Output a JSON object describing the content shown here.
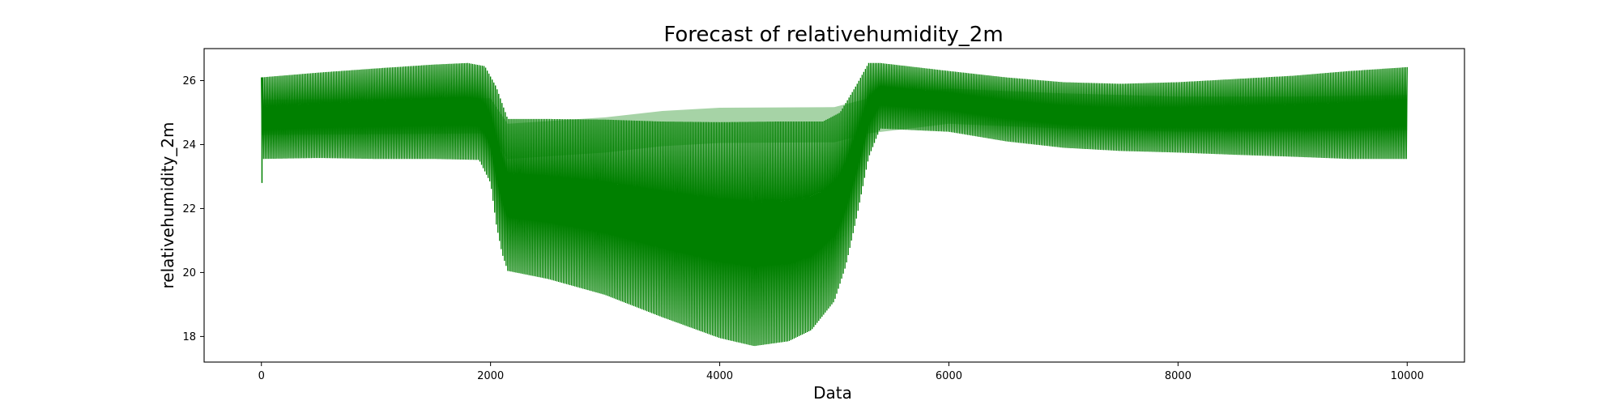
{
  "chart_data": {
    "type": "line",
    "title": "Forecast of relativehumidity_2m",
    "xlabel": "Data",
    "ylabel": "relativehumidity_2m",
    "xlim": [
      -500,
      10500
    ],
    "ylim": [
      17.2,
      27.0
    ],
    "xticks": [
      0,
      2000,
      4000,
      6000,
      8000,
      10000
    ],
    "yticks": [
      18,
      20,
      22,
      24,
      26
    ],
    "grid": false,
    "series": [
      {
        "color": "#008000",
        "x_range": [
          0,
          10000
        ],
        "upper_envelope": [
          [
            0,
            26.1
          ],
          [
            500,
            26.25
          ],
          [
            1000,
            26.38
          ],
          [
            1500,
            26.5
          ],
          [
            1800,
            26.55
          ],
          [
            1950,
            26.45
          ],
          [
            2050,
            25.8
          ],
          [
            2150,
            24.8
          ],
          [
            2500,
            24.8
          ],
          [
            3000,
            24.78
          ],
          [
            3500,
            24.72
          ],
          [
            4000,
            24.7
          ],
          [
            4500,
            24.72
          ],
          [
            4900,
            24.72
          ],
          [
            5050,
            25.0
          ],
          [
            5200,
            25.9
          ],
          [
            5300,
            26.55
          ],
          [
            5400,
            26.55
          ],
          [
            6000,
            26.3
          ],
          [
            6500,
            26.1
          ],
          [
            7000,
            25.95
          ],
          [
            7500,
            25.9
          ],
          [
            8000,
            25.95
          ],
          [
            8500,
            26.05
          ],
          [
            9000,
            26.15
          ],
          [
            9500,
            26.3
          ],
          [
            10000,
            26.42
          ]
        ],
        "lower_envelope": [
          [
            0,
            23.55
          ],
          [
            500,
            23.58
          ],
          [
            1000,
            23.55
          ],
          [
            1500,
            23.55
          ],
          [
            1900,
            23.52
          ],
          [
            2000,
            22.8
          ],
          [
            2050,
            21.5
          ],
          [
            2100,
            20.6
          ],
          [
            2150,
            20.05
          ],
          [
            2500,
            19.8
          ],
          [
            3000,
            19.3
          ],
          [
            3500,
            18.6
          ],
          [
            4000,
            17.95
          ],
          [
            4300,
            17.7
          ],
          [
            4600,
            17.85
          ],
          [
            4800,
            18.2
          ],
          [
            5000,
            19.1
          ],
          [
            5100,
            20.2
          ],
          [
            5200,
            21.8
          ],
          [
            5300,
            23.6
          ],
          [
            5400,
            24.5
          ],
          [
            6000,
            24.4
          ],
          [
            6500,
            24.1
          ],
          [
            7000,
            23.9
          ],
          [
            7500,
            23.8
          ],
          [
            8000,
            23.75
          ],
          [
            8500,
            23.68
          ],
          [
            9000,
            23.62
          ],
          [
            9500,
            23.55
          ],
          [
            10000,
            23.55
          ]
        ],
        "mean_line": [
          [
            0,
            24.85
          ],
          [
            2000,
            24.9
          ],
          [
            2150,
            24.1
          ],
          [
            3000,
            24.3
          ],
          [
            3500,
            24.5
          ],
          [
            4000,
            24.6
          ],
          [
            5000,
            24.62
          ],
          [
            5300,
            24.9
          ],
          [
            6000,
            25.2
          ],
          [
            7000,
            25.05
          ],
          [
            8000,
            24.95
          ],
          [
            9000,
            24.95
          ],
          [
            10000,
            25.0
          ]
        ],
        "outliers": [
          {
            "x": 5,
            "y": 22.8
          }
        ]
      }
    ]
  }
}
